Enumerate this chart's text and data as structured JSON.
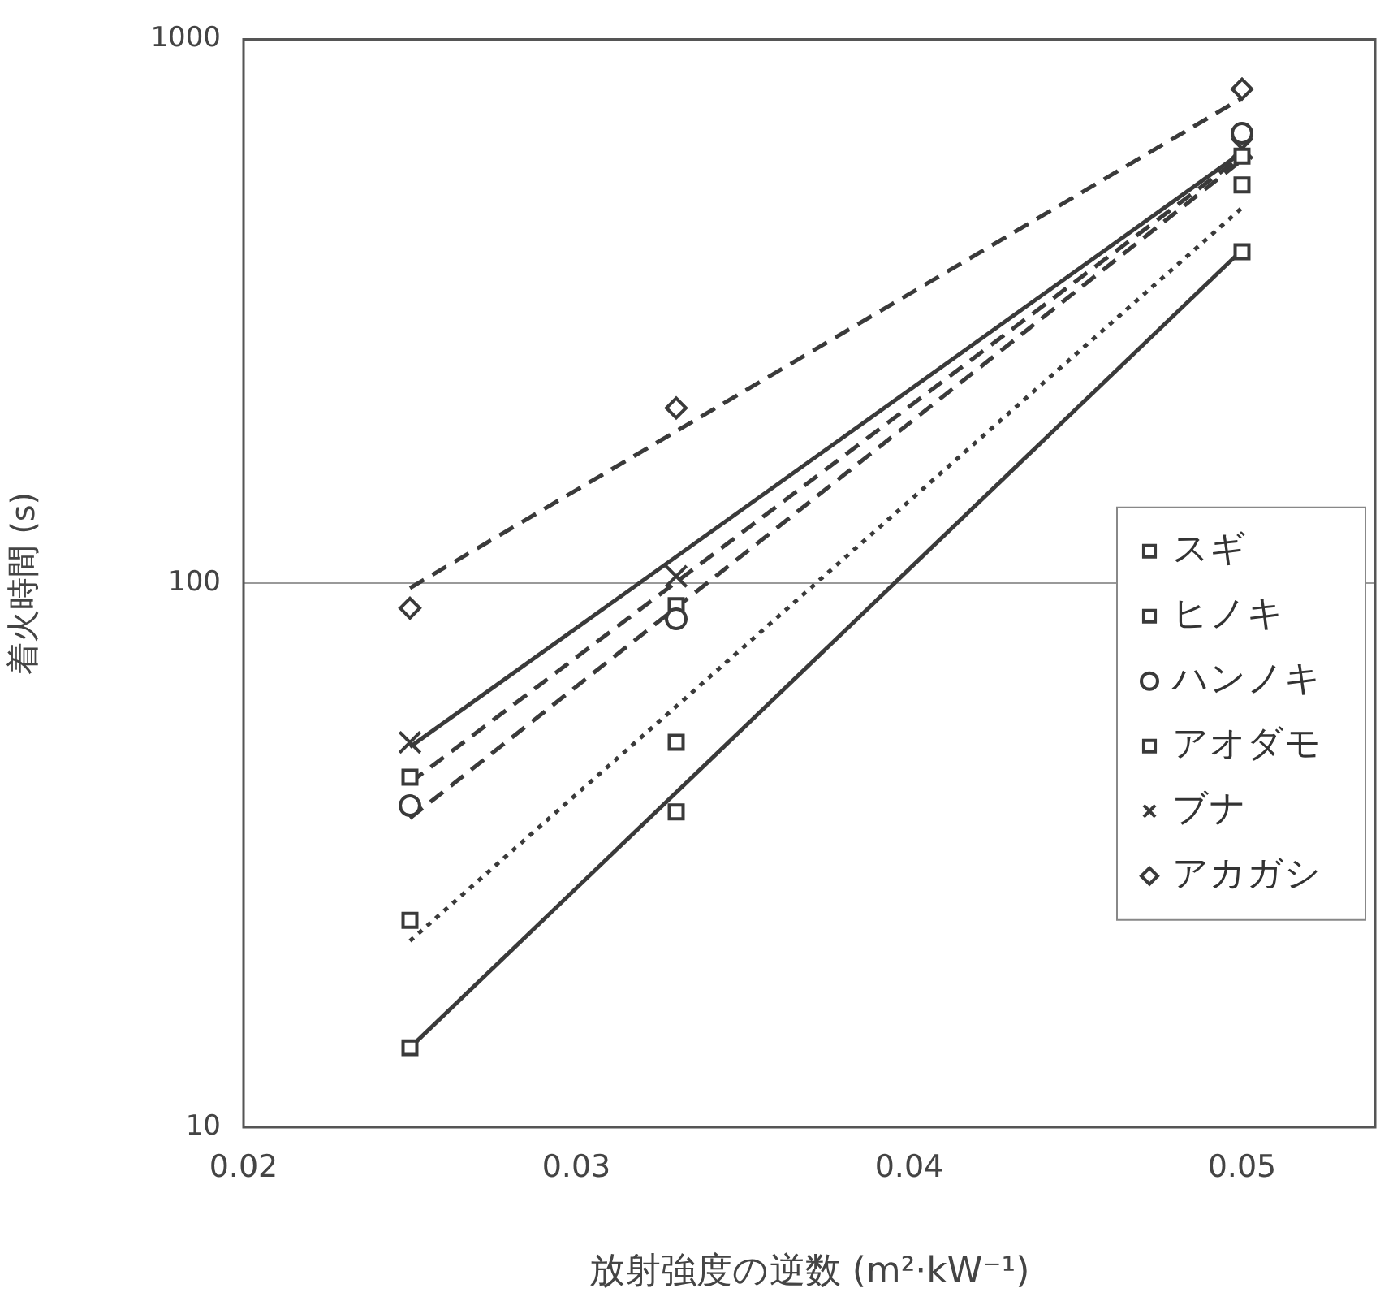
{
  "chart_data": {
    "type": "scatter",
    "xlabel": "放射強度の逆数 (m²·kW⁻¹)",
    "ylabel": "着火時間 (s)",
    "log": "y",
    "xlim": [
      0.02,
      0.054
    ],
    "xticks": [
      0.02,
      0.03,
      0.04,
      0.05
    ],
    "ylim": [
      10,
      1000
    ],
    "yticks": [
      10,
      100,
      1000
    ],
    "grid": "y",
    "legend": "right",
    "series": [
      {
        "name": "スギ",
        "color": "#3a3a3a",
        "marker": "square",
        "x": [
          0.025,
          0.033,
          0.05
        ],
        "values": [
          14,
          38,
          407
        ]
      },
      {
        "name": "ヒノキ",
        "color": "#3a3a3a",
        "marker": "square",
        "x": [
          0.025,
          0.033,
          0.05
        ],
        "values": [
          24,
          51,
          540
        ]
      },
      {
        "name": "ハンノキ",
        "color": "#3a3a3a",
        "marker": "circle",
        "x": [
          0.025,
          0.033,
          0.05
        ],
        "values": [
          39,
          86,
          672
        ]
      },
      {
        "name": "アオダモ",
        "color": "#3a3a3a",
        "marker": "square",
        "x": [
          0.025,
          0.033,
          0.05
        ],
        "values": [
          44,
          91,
          610
        ]
      },
      {
        "name": "ブナ",
        "color": "#3a3a3a",
        "marker": "cross",
        "x": [
          0.025,
          0.033,
          0.05
        ],
        "values": [
          51,
          103,
          630
        ]
      },
      {
        "name": "アカガシ",
        "color": "#3a3a3a",
        "marker": "diamond",
        "x": [
          0.025,
          0.033,
          0.05
        ],
        "values": [
          90,
          210,
          810
        ]
      },
      {
        "type": "line",
        "color": "#3a3a3a",
        "line_style": "solid",
        "marker": "none",
        "x": [
          0.025,
          0.05
        ],
        "values": [
          14,
          410
        ]
      },
      {
        "type": "line",
        "color": "#3a3a3a",
        "line_style": "dotted",
        "marker": "none",
        "x": [
          0.025,
          0.05
        ],
        "values": [
          22,
          490
        ]
      },
      {
        "type": "line",
        "color": "#3a3a3a",
        "line_style": "dashed",
        "marker": "none",
        "x": [
          0.025,
          0.05
        ],
        "values": [
          37,
          600
        ]
      },
      {
        "type": "line",
        "color": "#3a3a3a",
        "line_style": "dashed",
        "marker": "none",
        "x": [
          0.025,
          0.05
        ],
        "values": [
          43,
          610
        ]
      },
      {
        "type": "line",
        "color": "#3a3a3a",
        "line_style": "solid",
        "marker": "none",
        "x": [
          0.025,
          0.05
        ],
        "values": [
          50,
          620
        ]
      },
      {
        "type": "line",
        "color": "#3a3a3a",
        "line_style": "dashed",
        "marker": "none",
        "x": [
          0.025,
          0.05
        ],
        "values": [
          98,
          780
        ]
      }
    ]
  }
}
